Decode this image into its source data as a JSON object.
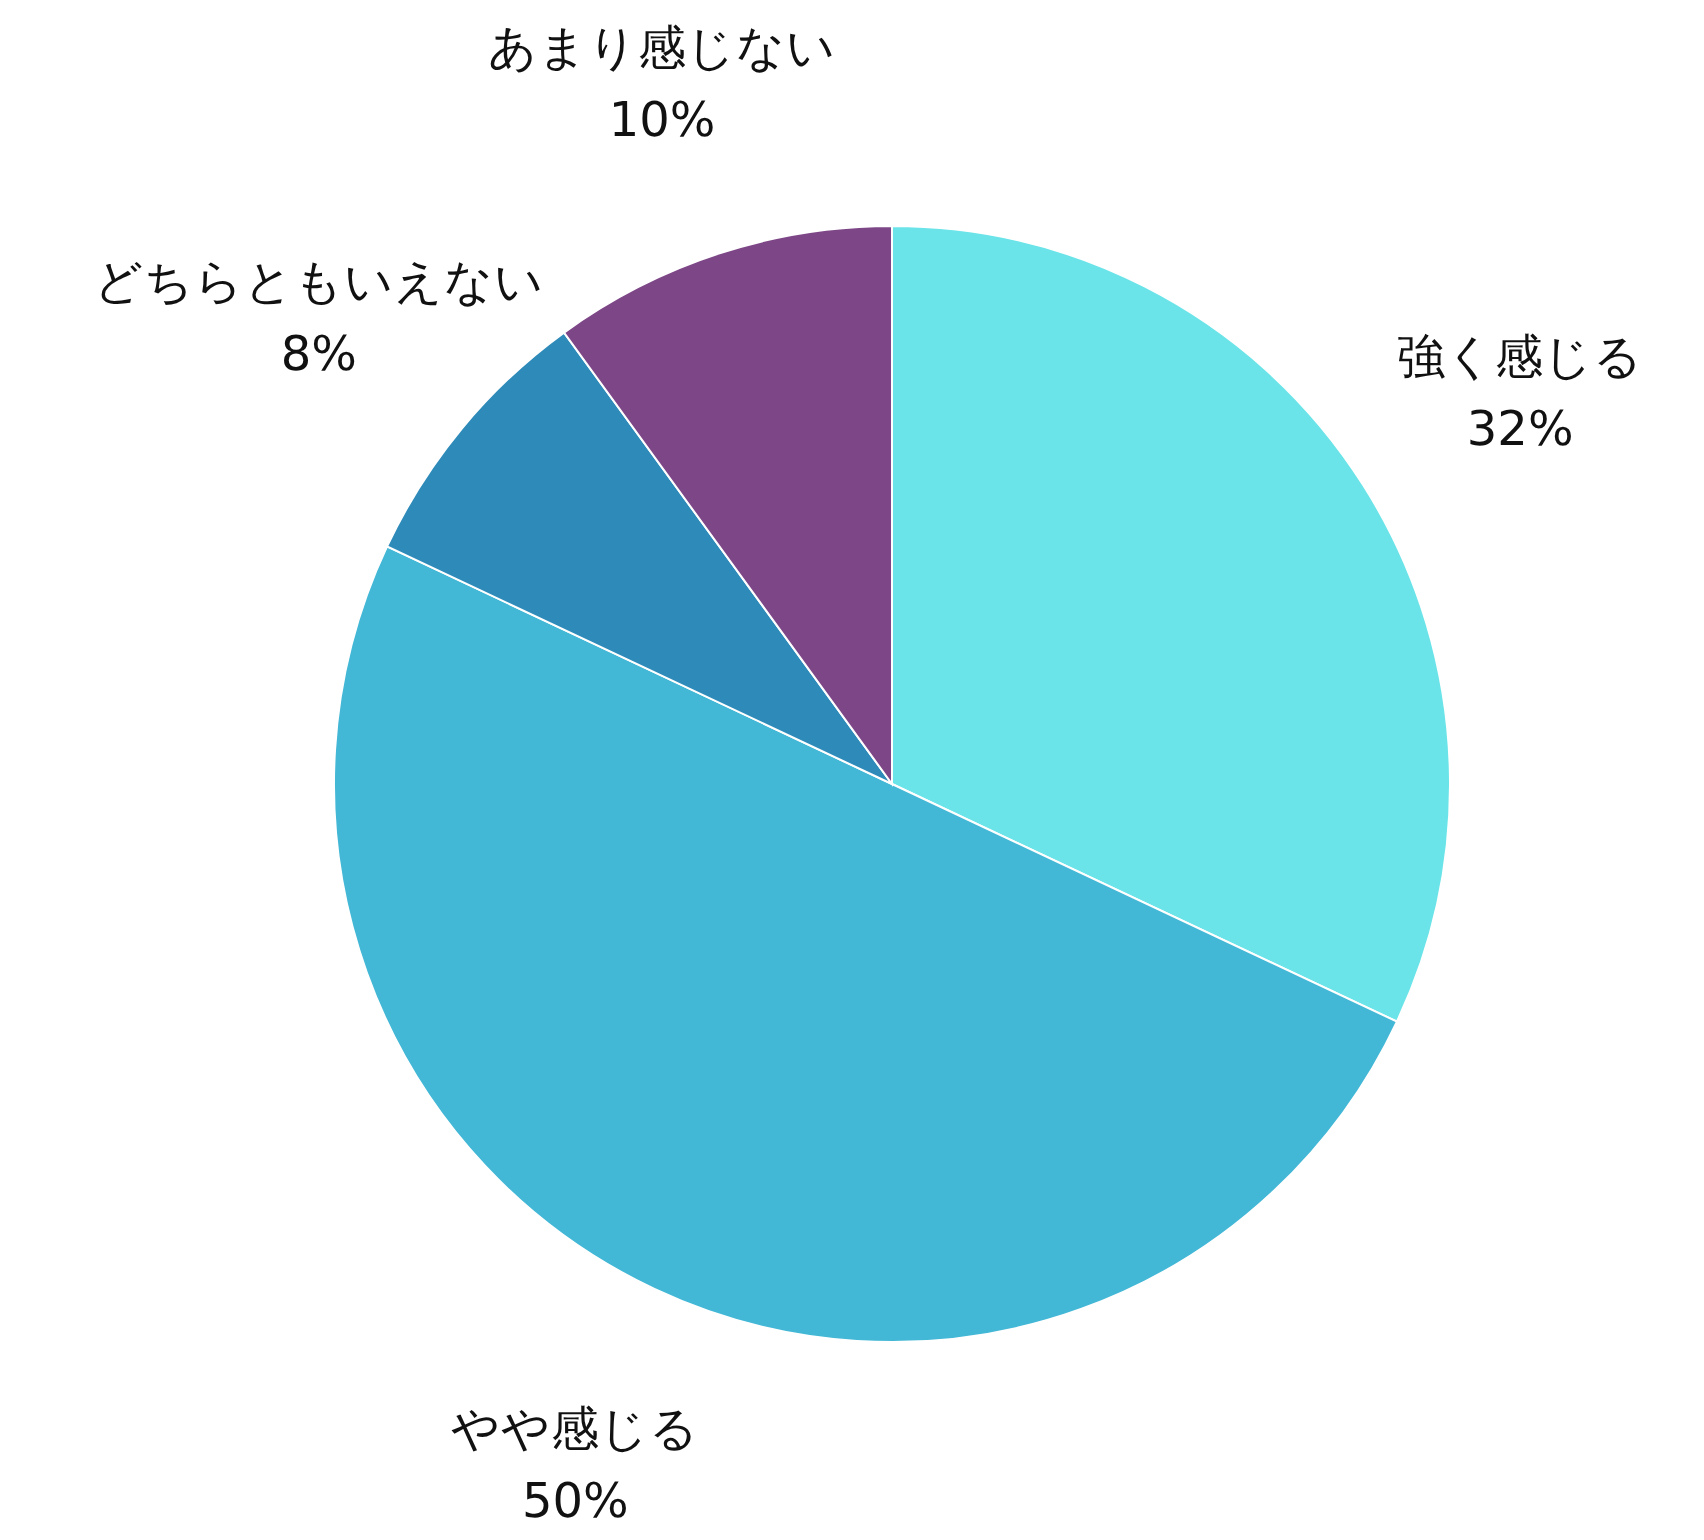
{
  "chart_data": {
    "type": "pie",
    "categories": [
      "強く感じる",
      "やや感じる",
      "どちらともいえない",
      "あまり感じない"
    ],
    "values": [
      32,
      50,
      8,
      10
    ],
    "value_labels": [
      "32%",
      "50%",
      "8%",
      "10%"
    ],
    "colors": [
      "#6ae4e8",
      "#42b7d6",
      "#2e8bb9",
      "#7d4787"
    ]
  }
}
